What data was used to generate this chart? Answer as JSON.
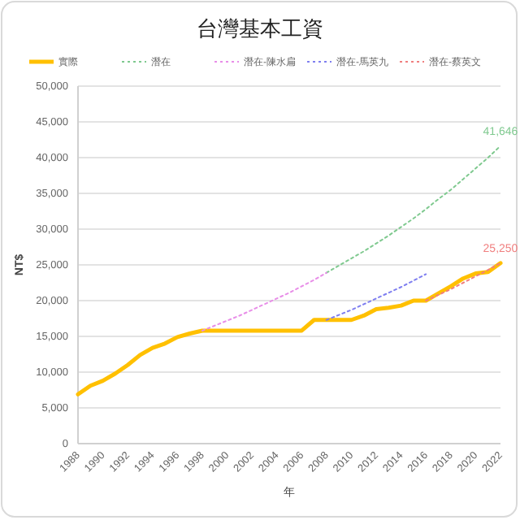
{
  "chart_data": {
    "type": "line",
    "title": "台灣基本工資",
    "xlabel": "年",
    "ylabel": "NT$",
    "legend": "top",
    "grid": "y",
    "marker": "none",
    "xlim": [
      1988,
      2022
    ],
    "xticks": [
      1988,
      1990,
      1992,
      1994,
      1996,
      1998,
      2000,
      2002,
      2004,
      2006,
      2008,
      2010,
      2012,
      2014,
      2016,
      2018,
      2020,
      2022
    ],
    "ylim": [
      0,
      50000
    ],
    "yticks": [
      0,
      {
        "value": 5000,
        "label": "5,000"
      },
      {
        "value": 10000,
        "label": "10,000"
      },
      {
        "value": 15000,
        "label": "15,000"
      },
      {
        "value": 20000,
        "label": "20,000"
      },
      {
        "value": 25000,
        "label": "25,000"
      },
      {
        "value": 30000,
        "label": "30,000"
      },
      {
        "value": 35000,
        "label": "35,000"
      },
      {
        "value": 40000,
        "label": "40,000"
      },
      {
        "value": 45000,
        "label": "45,000"
      },
      {
        "value": 50000,
        "label": "50,000"
      }
    ],
    "series": [
      {
        "name": "實際",
        "color": "#ffc000",
        "line_style": "solid",
        "x": [
          1988,
          1989,
          1990,
          1991,
          1992,
          1993,
          1994,
          1995,
          1996,
          1997,
          1998,
          1999,
          2000,
          2001,
          2002,
          2003,
          2004,
          2005,
          2006,
          2007,
          2008,
          2009,
          2010,
          2011,
          2012,
          2013,
          2014,
          2015,
          2016,
          2017,
          2018,
          2019,
          2020,
          2021,
          2022
        ],
        "values": [
          6900,
          8100,
          8800,
          9800,
          11000,
          12400,
          13400,
          14000,
          14900,
          15400,
          15800,
          15800,
          15800,
          15800,
          15800,
          15800,
          15800,
          15800,
          15800,
          17300,
          17300,
          17300,
          17300,
          17900,
          18800,
          19000,
          19300,
          20000,
          20000,
          21000,
          22000,
          23100,
          23800,
          24000,
          25250
        ]
      },
      {
        "name": "潛在",
        "color": "#7fc98f",
        "line_style": "dotted",
        "x": [
          2008,
          2009,
          2010,
          2011,
          2012,
          2013,
          2014,
          2015,
          2016,
          2017,
          2018,
          2019,
          2020,
          2021,
          2022
        ],
        "values": [
          23900,
          24900,
          25900,
          26900,
          28000,
          29100,
          30300,
          31500,
          32800,
          34200,
          35500,
          37000,
          38500,
          40000,
          41646
        ],
        "value_labels": [
          null,
          null,
          null,
          null,
          null,
          null,
          null,
          null,
          null,
          null,
          null,
          null,
          null,
          null,
          "41,646"
        ]
      },
      {
        "name": "潛在-陳水扁",
        "color": "#e88ee8",
        "line_style": "dotted",
        "x": [
          1998,
          1999,
          2000,
          2001,
          2002,
          2003,
          2004,
          2005,
          2006,
          2007,
          2008
        ],
        "values": [
          15800,
          16500,
          17200,
          17900,
          18700,
          19500,
          20300,
          21100,
          22000,
          22900,
          23900
        ]
      },
      {
        "name": "潛在-馬英九",
        "color": "#7f7ff0",
        "line_style": "dotted",
        "x": [
          2008,
          2009,
          2010,
          2011,
          2012,
          2013,
          2014,
          2015,
          2016
        ],
        "values": [
          17300,
          18000,
          18700,
          19500,
          20300,
          21100,
          21900,
          22800,
          23700
        ]
      },
      {
        "name": "潛在-蔡英文",
        "color": "#f07f7f",
        "line_style": "dotted",
        "x": [
          2016,
          2017,
          2018,
          2019,
          2020,
          2021,
          2022
        ],
        "values": [
          20000,
          20800,
          21600,
          22500,
          23400,
          24300,
          25250
        ],
        "value_labels": [
          null,
          null,
          null,
          null,
          null,
          null,
          "25,250"
        ]
      }
    ]
  }
}
